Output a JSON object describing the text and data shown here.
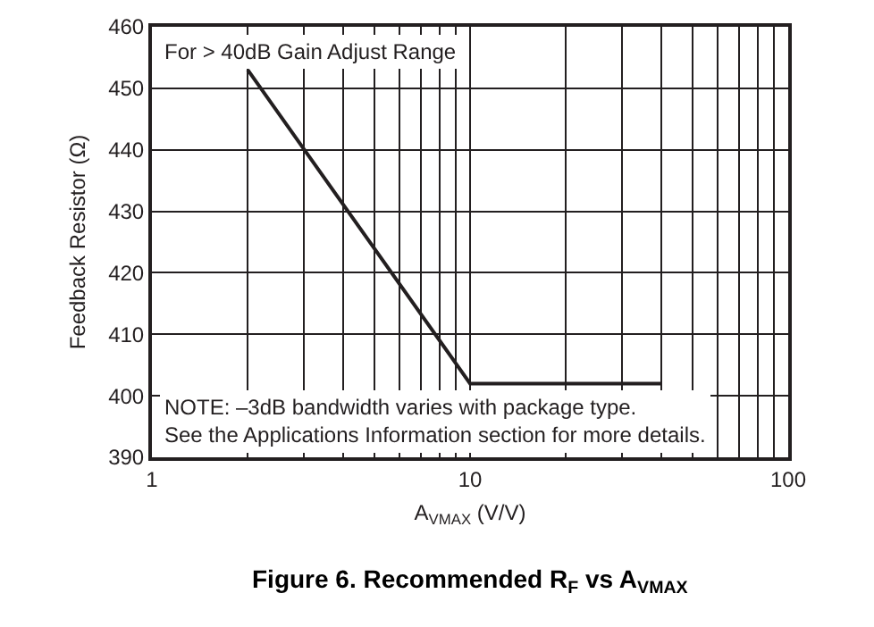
{
  "chart_data": {
    "type": "line",
    "title": "Figure 6. Recommended R$_{F}$ vs A$_{VMAX}$",
    "xlabel": "A$_{VMAX}$ (V/V)",
    "ylabel": "Feedback Resistor (Ω)",
    "x": [
      2,
      10,
      40
    ],
    "series": [
      {
        "color": "#231f20",
        "values": [
          453,
          402,
          402
        ]
      }
    ],
    "log": "x",
    "xlim": [
      1,
      100
    ],
    "xticks": [
      1,
      10,
      100
    ],
    "ylim": [
      390,
      460
    ],
    "yticks": [
      390,
      400,
      410,
      420,
      430,
      440,
      450,
      460
    ],
    "grid": true,
    "marker": "none",
    "line_style": "solid",
    "annotations": [
      "For > 40dB Gain Adjust Range",
      "NOTE: –3dB bandwidth varies with package type.\nSee the Applications Information section for more details."
    ]
  }
}
